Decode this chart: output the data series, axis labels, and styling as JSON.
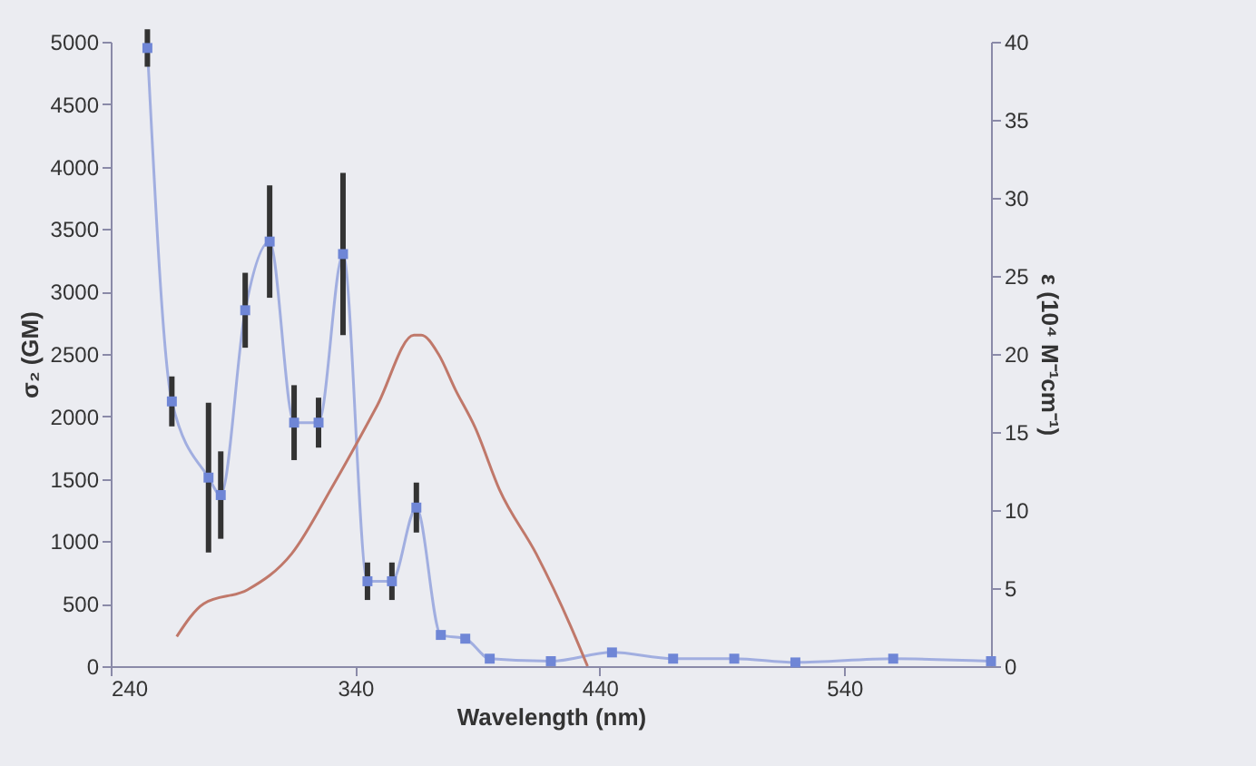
{
  "chart_data": {
    "type": "line",
    "xlabel": "Wavelength (nm)",
    "ylabel": "σ₂ (GM)",
    "y2label": "ε (10⁴ M⁻¹cm⁻¹)",
    "xlim": [
      240,
      600
    ],
    "xticks": [
      240,
      340,
      440,
      540
    ],
    "ylim": [
      0,
      5000
    ],
    "yticks": [
      0,
      500,
      1000,
      1500,
      2000,
      2500,
      3000,
      3500,
      4000,
      4500,
      5000
    ],
    "y2lim": [
      0,
      40
    ],
    "y2ticks": [
      0,
      5,
      10,
      15,
      20,
      25,
      30,
      35,
      40
    ],
    "grid": false,
    "series": [
      {
        "color": "#6f86d6",
        "marker": "square",
        "x": [
          255,
          265,
          280,
          285,
          295,
          305,
          315,
          325,
          335,
          345,
          355,
          365,
          375,
          385,
          395,
          420,
          445,
          470,
          495,
          520,
          560,
          600
        ],
        "values": [
          4950,
          2120,
          1510,
          1370,
          2850,
          3400,
          1950,
          1950,
          3300,
          680,
          680,
          1270,
          250,
          220,
          60,
          40,
          110,
          60,
          60,
          30,
          60,
          40
        ],
        "errors": [
          150,
          200,
          600,
          350,
          300,
          450,
          300,
          200,
          650,
          150,
          150,
          200,
          null,
          null,
          null,
          null,
          null,
          null,
          null,
          null,
          null,
          null
        ]
      },
      {
        "color": "#c0786a",
        "axis": "y2",
        "marker": "none",
        "x": [
          267,
          278,
          296,
          314,
          331,
          349,
          364,
          367,
          374,
          381,
          389,
          399,
          414,
          428,
          435
        ],
        "values": [
          1.9,
          4,
          4.9,
          7.2,
          11.6,
          16.7,
          21.2,
          21.2,
          20,
          17.7,
          15.3,
          11.3,
          7.2,
          2.6,
          0
        ]
      }
    ]
  }
}
